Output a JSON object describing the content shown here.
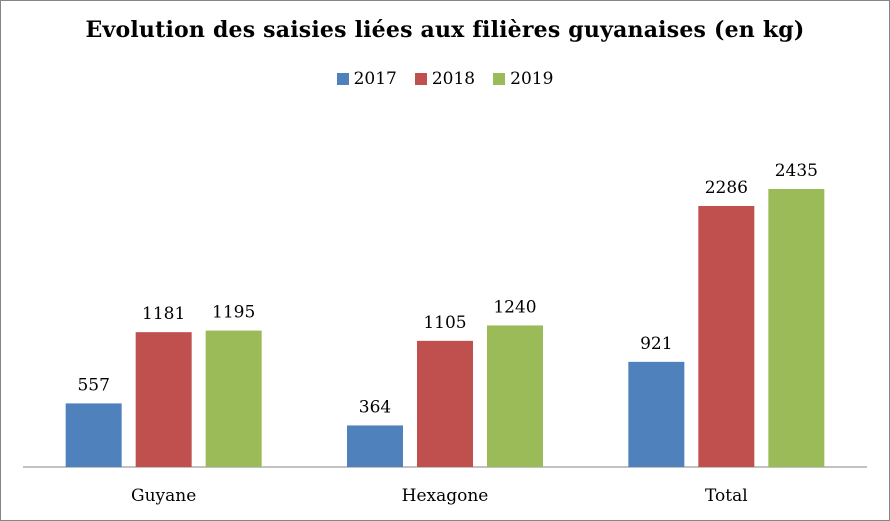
{
  "chart_data": {
    "type": "bar",
    "title": "Evolution des saisies liées aux filières guyanaises (en kg)",
    "categories": [
      "Guyane",
      "Hexagone",
      "Total"
    ],
    "series": [
      {
        "name": "2017",
        "color": "#4f81bd",
        "values": [
          557,
          364,
          921
        ]
      },
      {
        "name": "2018",
        "color": "#c0504d",
        "values": [
          1181,
          1105,
          2286
        ]
      },
      {
        "name": "2019",
        "color": "#9bbb59",
        "values": [
          1195,
          1240,
          2435
        ]
      }
    ],
    "xlabel": "",
    "ylabel": "",
    "ylim": [
      0,
      2435
    ],
    "grid": false,
    "legend_position": "top"
  }
}
